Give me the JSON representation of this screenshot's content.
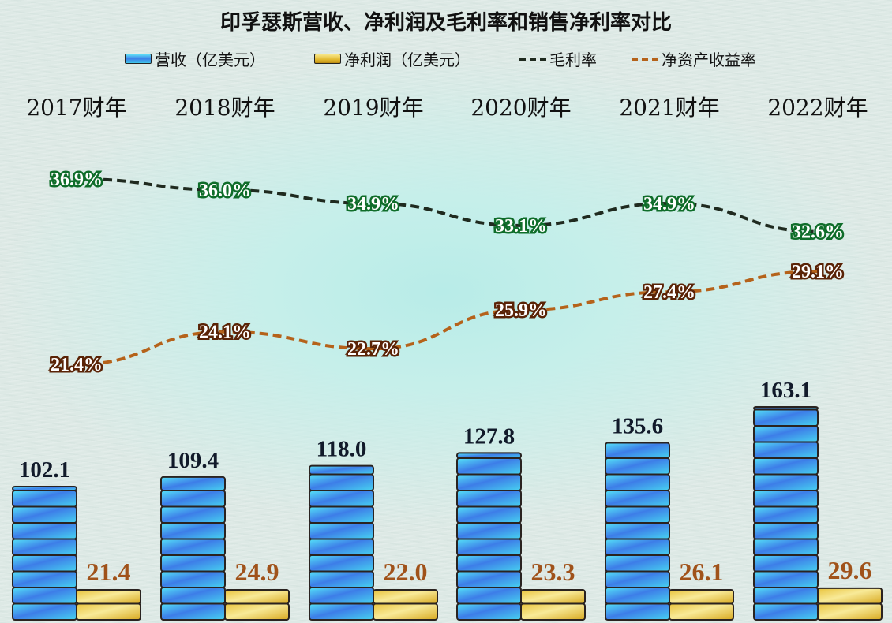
{
  "chart_data": {
    "type": "bar",
    "title": "印孚瑟斯营收、净利润及毛利率和销售净利率对比",
    "categories": [
      "2017财年",
      "2018财年",
      "2019财年",
      "2020财年",
      "2021财年",
      "2022财年"
    ],
    "series": [
      {
        "name": "营收（亿美元）",
        "kind": "bar",
        "color": "#3c8ee8",
        "values": [
          102.1,
          109.4,
          118.0,
          127.8,
          135.6,
          163.1
        ]
      },
      {
        "name": "净利润（亿美元）",
        "kind": "bar",
        "color": "#e2b92f",
        "values": [
          21.4,
          24.9,
          22.0,
          23.3,
          26.1,
          29.6
        ]
      },
      {
        "name": "毛利率",
        "kind": "line",
        "style": "dashed",
        "color": "#1f2a1f",
        "label_color": "#0f6d2a",
        "values": [
          36.9,
          36.0,
          34.9,
          33.1,
          34.9,
          32.6
        ],
        "unit": "%"
      },
      {
        "name": "净资产收益率",
        "kind": "line",
        "style": "dashed",
        "color": "#b5621a",
        "label_color": "#5a2306",
        "values": [
          21.4,
          24.1,
          22.7,
          25.9,
          27.4,
          29.1
        ],
        "unit": "%"
      }
    ],
    "xlabel": "",
    "ylabel": "",
    "grid": false,
    "legend_position": "top"
  },
  "title": "印孚瑟斯营收、净利润及毛利率和销售净利率对比",
  "legend": [
    {
      "label": "营收（亿美元）",
      "type": "bar"
    },
    {
      "label": "净利润（亿美元）",
      "type": "bar"
    },
    {
      "label": "毛利率",
      "type": "line"
    },
    {
      "label": "净资产收益率",
      "type": "line"
    }
  ],
  "years": [
    "2017财年",
    "2018财年",
    "2019财年",
    "2020财年",
    "2021财年",
    "2022财年"
  ],
  "colors": {
    "revenue_bar": "#3c8ee8",
    "net_profit_bar": "#e2b92f",
    "gross_margin_line": "#1f2a1f",
    "roe_line": "#b5621a",
    "revenue_label": "#111a2a",
    "net_profit_label": "#a0521a"
  }
}
